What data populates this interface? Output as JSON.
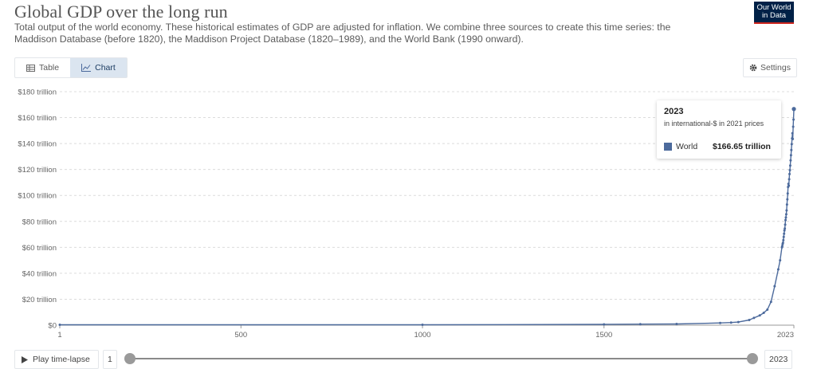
{
  "header": {
    "title": "Global GDP over the long run",
    "subtitle": "Total output of the world economy. These historical estimates of GDP are adjusted for inflation. We combine three sources to create this time series: the Maddison Database (before 1820), the Maddison Project Database (1820–1989), and the World Bank (1990 onward).",
    "logo_line1": "Our World",
    "logo_line2": "in Data"
  },
  "colors": {
    "line": "#4c6a9c",
    "logo_bg": "#002147",
    "logo_accent": "#ce261e",
    "tab_active": "#dbe5f0"
  },
  "tabs": [
    {
      "label": "Table",
      "icon": "table-icon",
      "active": false
    },
    {
      "label": "Chart",
      "icon": "line-chart-icon",
      "active": true
    }
  ],
  "settings_label": "Settings",
  "tooltip": {
    "year": "2023",
    "unit": "in international-$ in 2021 prices",
    "series": "World",
    "value": "$166.65 trillion"
  },
  "timeline": {
    "play_label": "Play time-lapse",
    "start": "1",
    "end": "2023"
  },
  "chart_data": {
    "type": "line",
    "ylabel": "",
    "xlabel": "",
    "xlim": [
      1,
      2023
    ],
    "ylim": [
      0,
      180
    ],
    "x_ticks": [
      {
        "value": 1,
        "label": "1"
      },
      {
        "value": 500,
        "label": "500"
      },
      {
        "value": 1000,
        "label": "1000"
      },
      {
        "value": 1500,
        "label": "1500"
      },
      {
        "value": 2023,
        "label": "2023"
      }
    ],
    "y_ticks": [
      {
        "value": 0,
        "label": "$0"
      },
      {
        "value": 20,
        "label": "$20 trillion"
      },
      {
        "value": 40,
        "label": "$40 trillion"
      },
      {
        "value": 60,
        "label": "$60 trillion"
      },
      {
        "value": 80,
        "label": "$80 trillion"
      },
      {
        "value": 100,
        "label": "$100 trillion"
      },
      {
        "value": 120,
        "label": "$120 trillion"
      },
      {
        "value": 140,
        "label": "$140 trillion"
      },
      {
        "value": 160,
        "label": "$160 trillion"
      },
      {
        "value": 180,
        "label": "$180 trillion"
      }
    ],
    "grid": "horizontal-dashed",
    "series": [
      {
        "name": "World",
        "points": [
          [
            1,
            0.3
          ],
          [
            1000,
            0.3
          ],
          [
            1500,
            0.6
          ],
          [
            1600,
            0.8
          ],
          [
            1700,
            0.9
          ],
          [
            1820,
            1.7
          ],
          [
            1850,
            2.0
          ],
          [
            1870,
            2.4
          ],
          [
            1900,
            4.0
          ],
          [
            1913,
            5.6
          ],
          [
            1929,
            7.5
          ],
          [
            1940,
            9.5
          ],
          [
            1950,
            12
          ],
          [
            1960,
            18
          ],
          [
            1970,
            30
          ],
          [
            1980,
            43
          ],
          [
            1985,
            50
          ],
          [
            1990,
            60
          ],
          [
            1991,
            61
          ],
          [
            1992,
            62.5
          ],
          [
            1993,
            63.5
          ],
          [
            1994,
            65.5
          ],
          [
            1995,
            68
          ],
          [
            1996,
            70.5
          ],
          [
            1997,
            73
          ],
          [
            1998,
            74.5
          ],
          [
            1999,
            77.5
          ],
          [
            2000,
            81
          ],
          [
            2001,
            83
          ],
          [
            2002,
            85.5
          ],
          [
            2003,
            88.5
          ],
          [
            2004,
            93
          ],
          [
            2005,
            97
          ],
          [
            2006,
            101.5
          ],
          [
            2007,
            106.5
          ],
          [
            2008,
            109
          ],
          [
            2009,
            107.5
          ],
          [
            2010,
            112.5
          ],
          [
            2011,
            116.5
          ],
          [
            2012,
            119.5
          ],
          [
            2013,
            123
          ],
          [
            2014,
            127
          ],
          [
            2015,
            131
          ],
          [
            2016,
            135
          ],
          [
            2017,
            139.5
          ],
          [
            2018,
            144
          ],
          [
            2019,
            148
          ],
          [
            2020,
            143.5
          ],
          [
            2021,
            153
          ],
          [
            2022,
            158.5
          ],
          [
            2023,
            166.65
          ]
        ]
      }
    ]
  }
}
